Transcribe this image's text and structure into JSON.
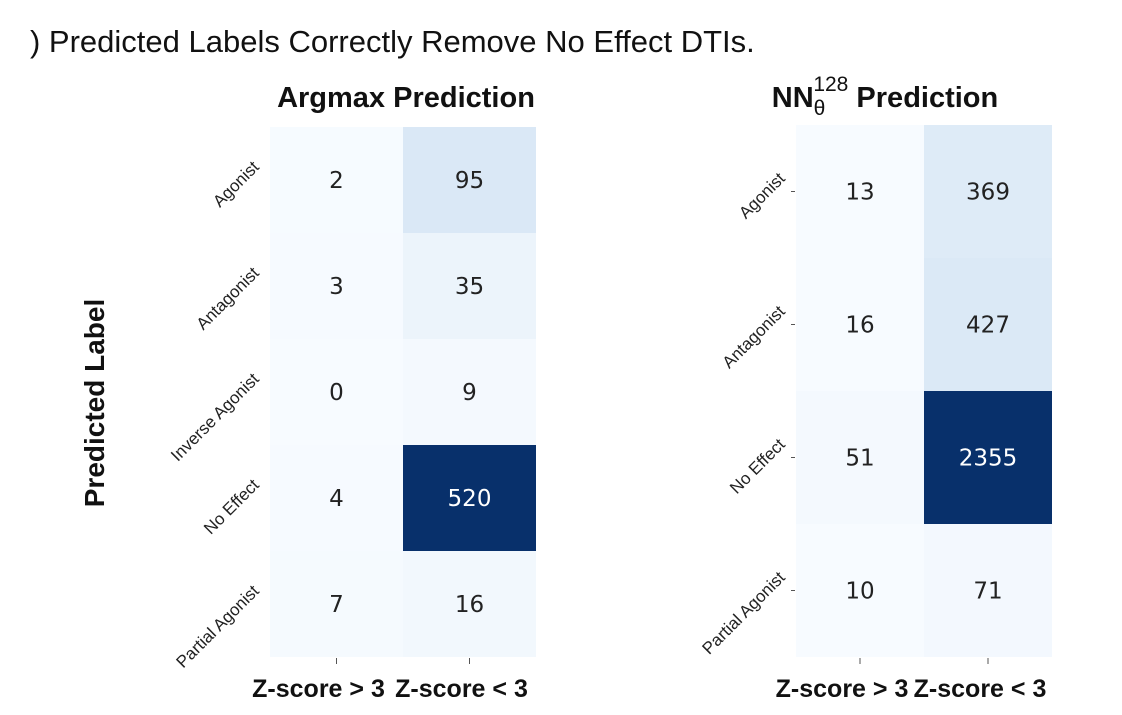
{
  "figure": {
    "title": ") Predicted Labels Correctly Remove No Effect DTIs.",
    "ylabel": "Predicted Label"
  },
  "colors": {
    "low": "#f7fbff",
    "high": "#08306b",
    "text_dark": "#222222",
    "text_light": "#ffffff"
  },
  "chart_data": [
    {
      "type": "heatmap",
      "title": "Argmax Prediction",
      "ylabel": "Predicted Label",
      "x_categories": [
        "Z-score > 3",
        "Z-score < 3"
      ],
      "y_categories": [
        "Agonist",
        "Antagonist",
        "Inverse Agonist",
        "No Effect",
        "Partial Agonist"
      ],
      "values": [
        [
          2,
          95
        ],
        [
          3,
          35
        ],
        [
          0,
          9
        ],
        [
          4,
          520
        ],
        [
          7,
          16
        ]
      ],
      "colormap": "Blues",
      "colorbar": false
    },
    {
      "type": "heatmap",
      "title": "NN",
      "title_sub": "θ",
      "title_sup": "128",
      "title_suffix": " Prediction",
      "x_categories": [
        "Z-score > 3",
        "Z-score < 3"
      ],
      "y_categories": [
        "Agonist",
        "Antagonist",
        "No Effect",
        "Partial Agonist"
      ],
      "values": [
        [
          13,
          369
        ],
        [
          16,
          427
        ],
        [
          51,
          2355
        ],
        [
          10,
          71
        ]
      ],
      "colormap": "Blues",
      "colorbar": false
    }
  ]
}
